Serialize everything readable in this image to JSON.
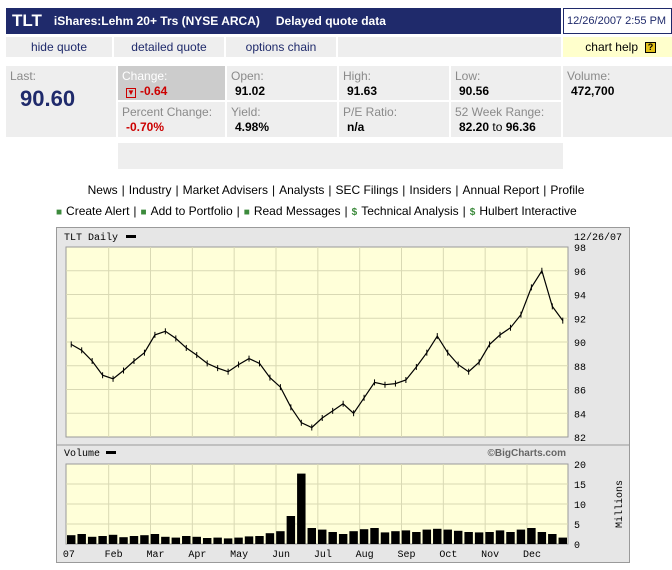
{
  "header": {
    "symbol": "TLT",
    "name": "iShares:Lehm 20+ Trs (NYSE ARCA)",
    "delayed": "Delayed quote data",
    "datetime": "12/26/2007 2:55 PM"
  },
  "links": {
    "hide_quote": "hide quote",
    "detailed_quote": "detailed quote",
    "options_chain": "options chain",
    "chart_help": "chart help",
    "chart_help_icon": "?"
  },
  "quote": {
    "last_label": "Last:",
    "last": "90.60",
    "change_label": "Change:",
    "change": "-0.64",
    "percent_change_label": "Percent Change:",
    "percent_change": "-0.70%",
    "open_label": "Open:",
    "open": "91.02",
    "yield_label": "Yield:",
    "yield": "4.98%",
    "high_label": "High:",
    "high": "91.63",
    "pe_label": "P/E Ratio:",
    "pe": "n/a",
    "low_label": "Low:",
    "low": "90.56",
    "range_label": "52 Week Range:",
    "range_low": "82.20",
    "range_to": "to",
    "range_high": "96.36",
    "volume_label": "Volume:",
    "volume": "472,700"
  },
  "nav": {
    "row1": [
      "News",
      "Industry",
      "Market Advisers",
      "Analysts",
      "SEC Filings",
      "Insiders",
      "Annual Report",
      "Profile"
    ],
    "row2": [
      {
        "icon": "■",
        "label": "Create Alert"
      },
      {
        "icon": "■",
        "label": "Add to Portfolio"
      },
      {
        "icon": "■",
        "label": "Read Messages"
      },
      {
        "icon": "$",
        "label": "Technical Analysis"
      },
      {
        "icon": "$",
        "label": "Hulbert Interactive"
      }
    ],
    "separator": "|"
  },
  "chart": {
    "title": "TLT Daily",
    "date": "12/26/07",
    "volume_title": "Volume",
    "brand": "©BigCharts.com",
    "volume_unit": "Millions",
    "price_ticks": [
      "98",
      "96",
      "94",
      "92",
      "90",
      "88",
      "86",
      "84",
      "82"
    ],
    "volume_ticks": [
      "20",
      "15",
      "10",
      "5",
      "0"
    ],
    "months": [
      "07",
      "Feb",
      "Mar",
      "Apr",
      "May",
      "Jun",
      "Jul",
      "Aug",
      "Sep",
      "Oct",
      "Nov",
      "Dec"
    ],
    "colors": {
      "plot_bg": "#ffffd9",
      "grid": "#d9d9b4",
      "frame": "#9a9a9a",
      "panel": "#e6e6e6"
    }
  },
  "chart_data": {
    "type": "line",
    "title": "TLT Daily",
    "ylim": [
      82,
      98
    ],
    "volume_ylim": [
      0,
      20
    ],
    "x": [
      "Jan",
      "Jan",
      "Jan",
      "Jan",
      "Feb",
      "Feb",
      "Feb",
      "Feb",
      "Mar",
      "Mar",
      "Mar",
      "Mar",
      "Apr",
      "Apr",
      "Apr",
      "Apr",
      "May",
      "May",
      "May",
      "May",
      "Jun",
      "Jun",
      "Jun",
      "Jun",
      "Jul",
      "Jul",
      "Jul",
      "Jul",
      "Aug",
      "Aug",
      "Aug",
      "Aug",
      "Sep",
      "Sep",
      "Sep",
      "Sep",
      "Oct",
      "Oct",
      "Oct",
      "Oct",
      "Nov",
      "Nov",
      "Nov",
      "Nov",
      "Dec",
      "Dec",
      "Dec",
      "Dec"
    ],
    "series": [
      {
        "values": [
          89.8,
          89.3,
          88.4,
          87.2,
          86.9,
          87.6,
          88.4,
          89.1,
          90.6,
          90.9,
          90.3,
          89.5,
          88.9,
          88.2,
          87.8,
          87.5,
          88.1,
          88.6,
          88.2,
          87.0,
          86.2,
          84.5,
          83.2,
          82.8,
          83.6,
          84.2,
          84.8,
          84.0,
          85.3,
          86.6,
          86.4,
          86.5,
          86.8,
          87.9,
          89.1,
          90.5,
          89.1,
          88.1,
          87.5,
          88.3,
          89.8,
          90.6,
          91.2,
          92.3,
          94.6,
          96.0,
          93.0,
          91.8
        ]
      },
      {
        "values": [
          2.2,
          2.5,
          1.8,
          2.0,
          2.3,
          1.7,
          2.0,
          2.2,
          2.5,
          1.8,
          1.6,
          2.0,
          1.8,
          1.5,
          1.6,
          1.4,
          1.6,
          1.9,
          2.0,
          2.7,
          3.2,
          7.0,
          17.6,
          4.0,
          3.6,
          3.0,
          2.5,
          3.2,
          3.7,
          4.0,
          2.9,
          3.2,
          3.4,
          3.0,
          3.6,
          3.8,
          3.6,
          3.3,
          3.0,
          2.9,
          3.0,
          3.4,
          3.0,
          3.6,
          4.0,
          3.0,
          2.5,
          1.6
        ]
      }
    ]
  }
}
